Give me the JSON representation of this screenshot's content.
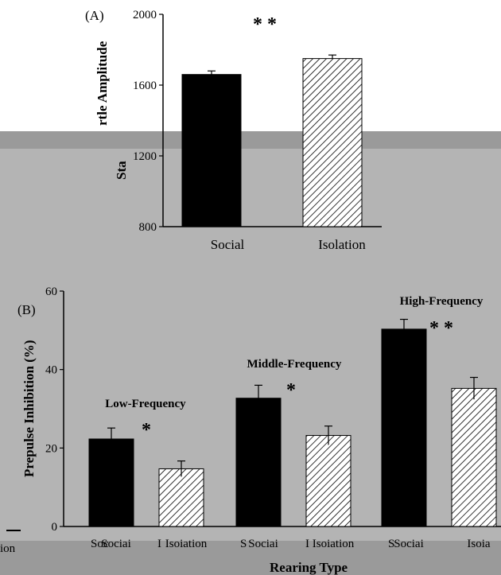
{
  "colors": {
    "page_bg": "#ffffff",
    "overlay_dark": "#9a9a9a",
    "overlay_light": "#b4b4b4",
    "bar_solid": "#000000",
    "bar_hatch": "#ffffff",
    "hatch_line": "#000000"
  },
  "chart_data": [
    {
      "type": "bar",
      "panel_label": "(A)",
      "title": "",
      "categories": [
        "Social",
        "Isolation"
      ],
      "values": [
        1660,
        1750
      ],
      "errors": [
        20,
        20
      ],
      "fill": [
        "solid",
        "hatched"
      ],
      "ylabel": "Startle Amplitude",
      "ylabel_visible_parts": [
        "rtle Amplitude",
        "Sta"
      ],
      "ylim": [
        800,
        2000
      ],
      "yticks": [
        800,
        1200,
        1600,
        2000
      ],
      "significance": [
        {
          "label": "* *",
          "between": [
            "Social",
            "Isolation"
          ]
        }
      ],
      "grid": false
    },
    {
      "type": "bar",
      "panel_label": "(B)",
      "title": "",
      "xlabel": "Rearing Type",
      "ylabel": "Prepulse Inhibition (%)",
      "ylim": [
        0,
        60
      ],
      "yticks": [
        0,
        20,
        40,
        60
      ],
      "grid": false,
      "groups": [
        {
          "label": "Low-Frequency",
          "significance": "*",
          "categories": [
            "Social",
            "Isolation"
          ],
          "tick_text": [
            "Sociai",
            "Isoiation"
          ],
          "values": [
            22.3,
            14.7
          ],
          "errors": [
            2.8,
            2.0
          ]
        },
        {
          "label": "Middle-Frequency",
          "significance": "*",
          "categories": [
            "Social",
            "Isolation"
          ],
          "tick_text": [
            "Sociai",
            "Isoiation"
          ],
          "values": [
            32.7,
            23.2
          ],
          "errors": [
            3.3,
            2.4
          ]
        },
        {
          "label": "High-Frequency",
          "significance": "* *",
          "categories": [
            "Social",
            "Isolation"
          ],
          "tick_text": [
            "Sociai",
            "Isoia"
          ],
          "values": [
            50.3,
            35.2
          ],
          "errors": [
            2.5,
            2.8
          ]
        }
      ],
      "fill": [
        "solid",
        "hatched"
      ]
    }
  ],
  "overlay_text": {
    "left_fragment": "ion",
    "tick_fragment_1": "Soc",
    "tick_fragment_2": "S",
    "tick_fragment_3": "S",
    "tick_fragment_4": "I",
    "tick_fragment_5": "I"
  }
}
